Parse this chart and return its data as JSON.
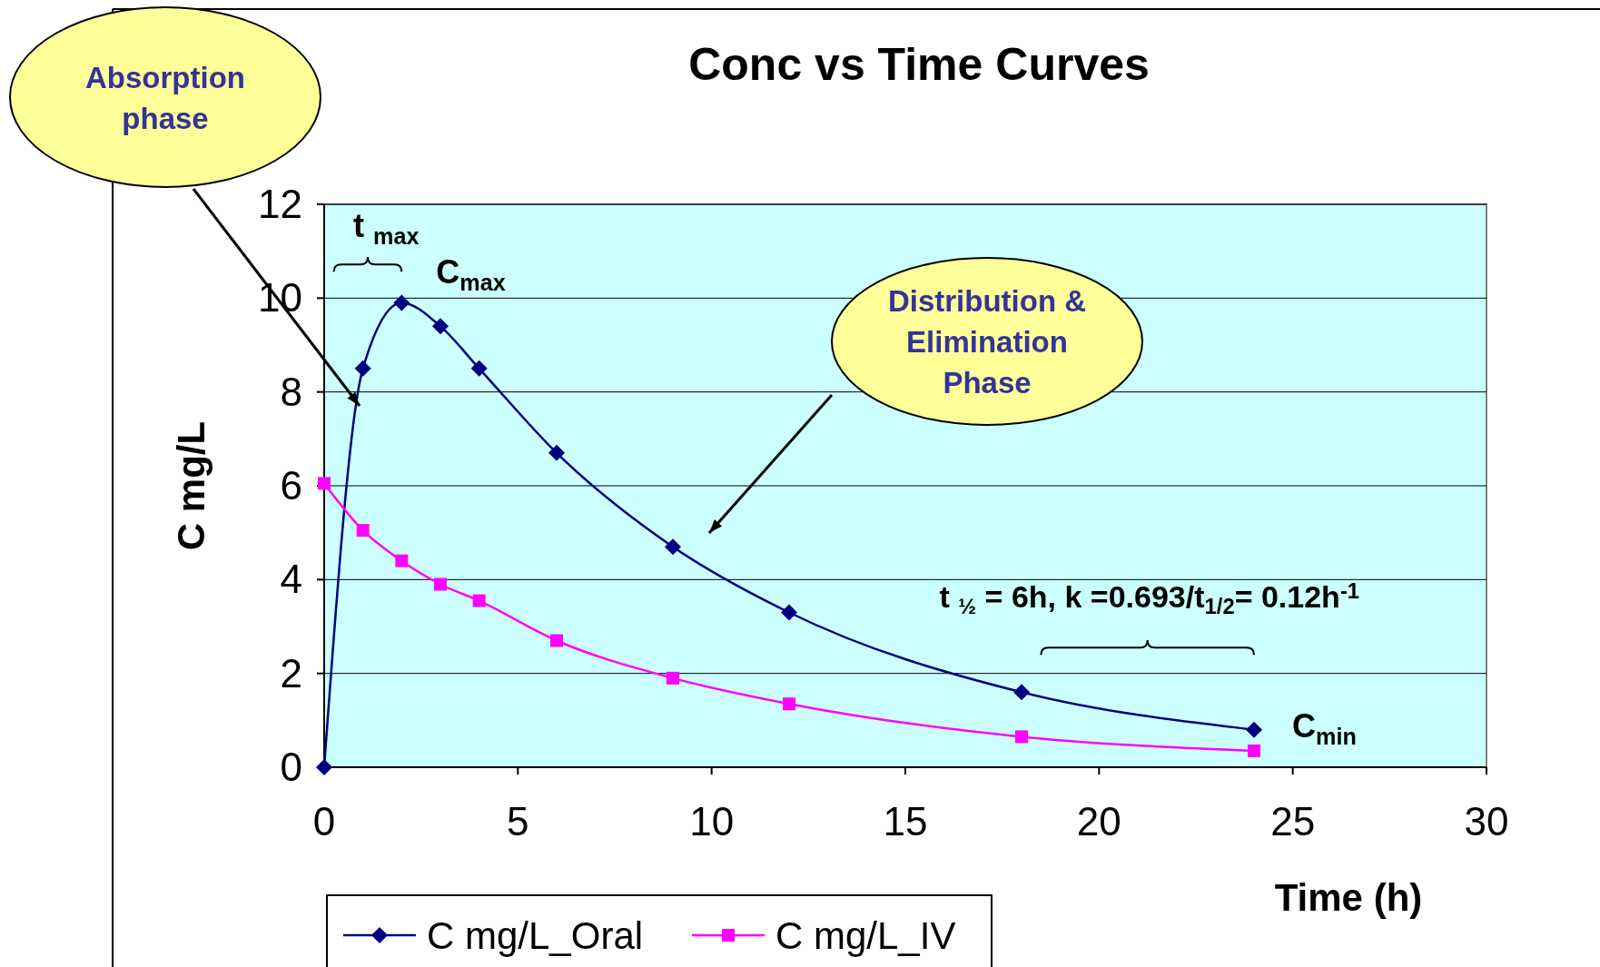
{
  "chart_data": {
    "type": "line",
    "title": "Conc vs Time Curves",
    "xlabel": "Time (h)",
    "ylabel": "C mg/L",
    "xlim": [
      0,
      30
    ],
    "xticks": [
      0,
      5,
      10,
      15,
      20,
      25,
      30
    ],
    "ylim": [
      0,
      12
    ],
    "yticks": [
      0,
      2,
      4,
      6,
      8,
      10,
      12
    ],
    "grid": "y",
    "legend": "bottom",
    "series": [
      {
        "name": "C mg/L_Oral",
        "color": "#000080",
        "marker": "diamond",
        "x": [
          0,
          1,
          2,
          3,
          4,
          6,
          9,
          12,
          18,
          24
        ],
        "values": [
          0,
          8.5,
          9.9,
          9.4,
          8.5,
          6.7,
          4.7,
          3.3,
          1.6,
          0.8
        ]
      },
      {
        "name": "C mg/L_IV",
        "color": "#ff00ff",
        "marker": "square",
        "x": [
          0,
          1,
          2,
          3,
          4,
          6,
          9,
          12,
          18,
          24
        ],
        "values": [
          6.05,
          5.05,
          4.4,
          3.9,
          3.55,
          2.7,
          1.9,
          1.35,
          0.65,
          0.35
        ]
      }
    ],
    "annotations": [
      "Absorption phase",
      "Distribution & Elimination Phase",
      "t $_{max}$",
      {
        "text": "C$_{max}$",
        "x": 2,
        "y": 9.9
      },
      {
        "text": "C$_{min}$",
        "x": 24,
        "y": 0.8
      },
      "t $_{½}$ = 6h, k =0.693/t$_{1/2}$= 0.12h$^{-1}$"
    ]
  }
}
